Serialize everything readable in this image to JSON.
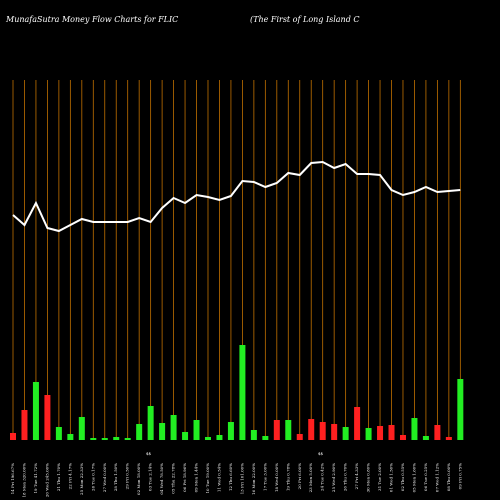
{
  "chart_data": {
    "type": "moneyflow",
    "title": "MunafaSutra  Money Flow  Charts for FLIC",
    "subtitle": "(The    First                          of Long Island C",
    "markers": [
      "$$",
      "$$"
    ],
    "categories": [
      "14 Fri 196.67%",
      "18 Mon 320.00%",
      "19 Tue 41.72%",
      "20 Wed 245.00%",
      "21 Thu 1.70%",
      "22 Fri 4.17%",
      "25 Mon 22.33%",
      "26 Tue 0.17%",
      "27 Wed 0.00%",
      "28 Thu 1.50%",
      "29 Fri 0.50%",
      "02 Mon 18.00%",
      "03 Tue 2.14%",
      "04 Wed 78.50%",
      "05 Thu 22.78%",
      "06 Fri 18.96%",
      "09 Mon 1.44%",
      "10 Tue 19.00%",
      "11 Wed 0.54%",
      "12 Thu 6.60%",
      "13 Fri 101.00%",
      "16 Mon 22.00%",
      "17 Tue 3.00%",
      "18 Wed 0.00%",
      "19 Thu 0.78%",
      "20 Fri 6.00%",
      "23 Mon 5.00%",
      "24 Tue 0.42%",
      "25 Wed 2.90%",
      "26 Thu 0.70%",
      "27 Fri 4.33%",
      "30 Mon 0.80%",
      "31 Tue 2.00%",
      "01 Wed 1.50%",
      "02 Thu 0.55%",
      "05 Mon 1.60%",
      "06 Tue 0.25%",
      "07 Wed 1.12%",
      "08 Thu 0.00%",
      "09 Fri 0.75%"
    ],
    "line": {
      "color": "#ffffff",
      "values": [
        225,
        215,
        237,
        212,
        209,
        215,
        221,
        218,
        218,
        218,
        218,
        222,
        218,
        232,
        242,
        237,
        245,
        243,
        240,
        244,
        259,
        258,
        253,
        257,
        267,
        265,
        277,
        278,
        272,
        276,
        266,
        266,
        265,
        250,
        245,
        248,
        253,
        248,
        249,
        250
      ]
    },
    "bars": {
      "values": [
        7,
        30,
        58,
        45,
        13,
        6,
        23,
        2,
        2,
        3,
        2,
        16,
        34,
        17,
        25,
        8,
        20,
        3,
        5,
        18,
        95,
        10,
        4,
        20,
        20,
        6,
        21,
        18,
        16,
        13,
        33,
        12,
        14,
        15,
        5,
        22,
        4,
        15,
        3,
        61
      ],
      "colors": [
        "#ff2020",
        "#ff2020",
        "#22ee22",
        "#ff2020",
        "#22ee22",
        "#22ee22",
        "#22ee22",
        "#22ee22",
        "#22ee22",
        "#22ee22",
        "#22ee22",
        "#22ee22",
        "#22ee22",
        "#22ee22",
        "#22ee22",
        "#22ee22",
        "#22ee22",
        "#22ee22",
        "#22ee22",
        "#22ee22",
        "#22ee22",
        "#22ee22",
        "#22ee22",
        "#ff2020",
        "#22ee22",
        "#ff2020",
        "#ff2020",
        "#ff2020",
        "#ff2020",
        "#22ee22",
        "#ff2020",
        "#22ee22",
        "#ff2020",
        "#ff2020",
        "#ff2020",
        "#22ee22",
        "#22ee22",
        "#ff2020",
        "#ff2020",
        "#22ee22"
      ]
    },
    "ylim": [
      0,
      360
    ],
    "gridline_color": "#c07000"
  }
}
